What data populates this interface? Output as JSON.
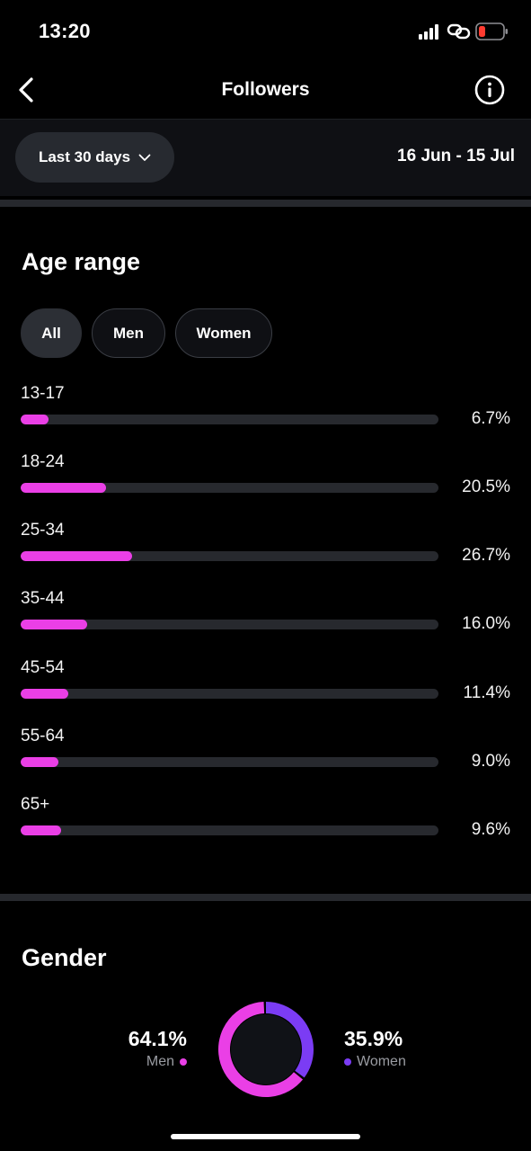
{
  "status_bar": {
    "time": "13:20"
  },
  "header": {
    "title": "Followers",
    "back_icon": "chevron-left-icon",
    "info_icon": "info-icon"
  },
  "filter": {
    "range_label": "Last 30 days",
    "date_range": "16 Jun - 15 Jul"
  },
  "age_range": {
    "title": "Age range",
    "chips": [
      {
        "label": "All",
        "active": true
      },
      {
        "label": "Men",
        "active": false
      },
      {
        "label": "Women",
        "active": false
      }
    ],
    "rows": [
      {
        "label": "13-17",
        "value": 6.7,
        "display": "6.7%"
      },
      {
        "label": "18-24",
        "value": 20.5,
        "display": "20.5%"
      },
      {
        "label": "25-34",
        "value": 26.7,
        "display": "26.7%"
      },
      {
        "label": "35-44",
        "value": 16.0,
        "display": "16.0%"
      },
      {
        "label": "45-54",
        "value": 11.4,
        "display": "11.4%"
      },
      {
        "label": "55-64",
        "value": 9.0,
        "display": "9.0%"
      },
      {
        "label": "65+",
        "value": 9.6,
        "display": "9.6%"
      }
    ],
    "scale_max": 100
  },
  "gender": {
    "title": "Gender",
    "men": {
      "pct": "64.1%",
      "label": "Men",
      "value": 64.1
    },
    "women": {
      "pct": "35.9%",
      "label": "Women",
      "value": 35.9
    }
  },
  "colors": {
    "accent_pink": "#ea3fe6",
    "accent_purple": "#7b3cf4",
    "track": "#27292e"
  }
}
